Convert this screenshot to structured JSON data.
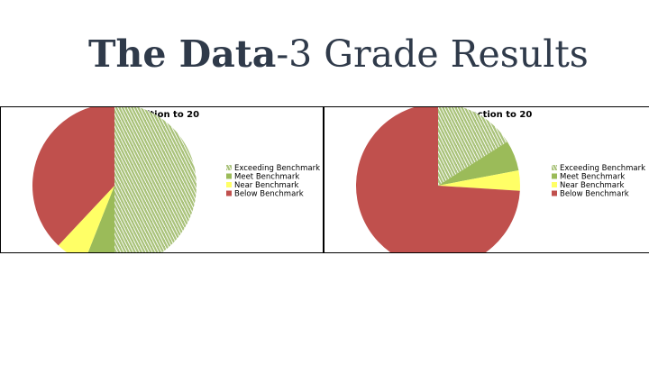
{
  "slide": {
    "title_bold": "The Data",
    "title_rest": "-3 Grade Results"
  },
  "colors": {
    "exceeding": "#a9c27a",
    "exceeding_pattern_line": "#ffffff",
    "meet": "#9bbb59",
    "near": "#ffff66",
    "below": "#c0504d"
  },
  "chart_data": [
    {
      "type": "pie",
      "title": "Addition to 20",
      "legend_position": "right",
      "categories": [
        "Exceeding Benchmark",
        "Meet Benchmark",
        "Near Benchmark",
        "Below Benchmark"
      ],
      "values": [
        50,
        6,
        6,
        38
      ],
      "start_angle_deg": 0,
      "direction": "clockwise"
    },
    {
      "type": "pie",
      "title": "Subtraction to 20",
      "legend_position": "right",
      "categories": [
        "Exceeding Benchmark",
        "Meet Benchmark",
        "Near Benchmark",
        "Below Benchmark"
      ],
      "values": [
        16,
        6,
        4,
        74
      ],
      "start_angle_deg": 0,
      "direction": "clockwise"
    }
  ]
}
